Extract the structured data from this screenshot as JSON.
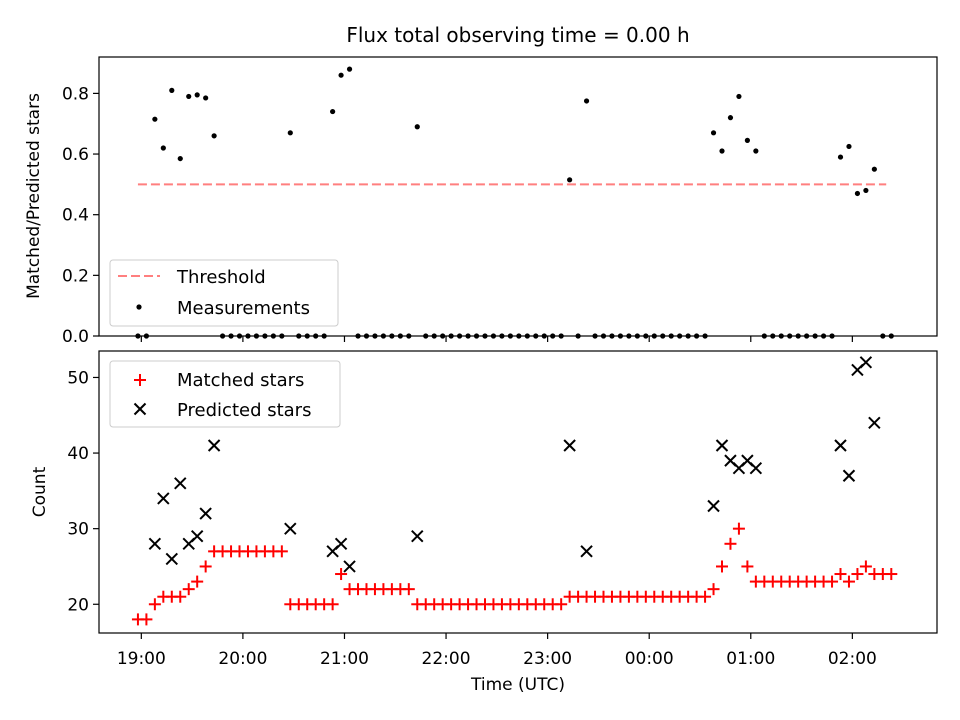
{
  "chart_data": [
    {
      "type": "scatter",
      "title": "Flux total observing time = 0.00 h",
      "ylabel": "Matched/Predicted stars",
      "xlim": [
        "18:35",
        "02:50"
      ],
      "ylim": [
        0,
        0.92
      ],
      "yticks": [
        "0.0",
        "0.2",
        "0.4",
        "0.6",
        "0.8"
      ],
      "legend_position": "lower-left",
      "threshold": {
        "name": "Threshold",
        "value": 0.5,
        "x_range": [
          "18:58",
          "02:20"
        ],
        "color": "#ff7f7f",
        "style": "dashed"
      },
      "series": [
        {
          "name": "Measurements",
          "color": "#000000",
          "marker": "dot",
          "points": [
            [
              "18:58",
              0
            ],
            [
              "19:03",
              0
            ],
            [
              "19:08",
              0.715
            ],
            [
              "19:13",
              0.62
            ],
            [
              "19:18",
              0.81
            ],
            [
              "19:23",
              0.585
            ],
            [
              "19:28",
              0.79
            ],
            [
              "19:33",
              0.795
            ],
            [
              "19:38",
              0.785
            ],
            [
              "19:43",
              0.66
            ],
            [
              "19:48",
              0
            ],
            [
              "19:53",
              0
            ],
            [
              "19:58",
              0
            ],
            [
              "20:03",
              0
            ],
            [
              "20:08",
              0
            ],
            [
              "20:13",
              0
            ],
            [
              "20:18",
              0
            ],
            [
              "20:23",
              0
            ],
            [
              "20:28",
              0.67
            ],
            [
              "20:33",
              0
            ],
            [
              "20:38",
              0
            ],
            [
              "20:43",
              0
            ],
            [
              "20:48",
              0
            ],
            [
              "20:53",
              0.74
            ],
            [
              "20:58",
              0.86
            ],
            [
              "21:03",
              0.88
            ],
            [
              "21:08",
              0
            ],
            [
              "21:13",
              0
            ],
            [
              "21:18",
              0
            ],
            [
              "21:23",
              0
            ],
            [
              "21:28",
              0
            ],
            [
              "21:33",
              0
            ],
            [
              "21:38",
              0
            ],
            [
              "21:43",
              0.69
            ],
            [
              "21:48",
              0
            ],
            [
              "21:53",
              0
            ],
            [
              "21:58",
              0
            ],
            [
              "22:03",
              0
            ],
            [
              "22:08",
              0
            ],
            [
              "22:13",
              0
            ],
            [
              "22:18",
              0
            ],
            [
              "22:23",
              0
            ],
            [
              "22:28",
              0
            ],
            [
              "22:33",
              0
            ],
            [
              "22:38",
              0
            ],
            [
              "22:43",
              0
            ],
            [
              "22:48",
              0
            ],
            [
              "22:53",
              0
            ],
            [
              "22:58",
              0
            ],
            [
              "23:03",
              0
            ],
            [
              "23:08",
              0
            ],
            [
              "23:13",
              0.515
            ],
            [
              "23:18",
              0
            ],
            [
              "23:23",
              0.775
            ],
            [
              "23:28",
              0
            ],
            [
              "23:33",
              0
            ],
            [
              "23:38",
              0
            ],
            [
              "23:43",
              0
            ],
            [
              "23:48",
              0
            ],
            [
              "23:53",
              0
            ],
            [
              "23:58",
              0
            ],
            [
              "00:03",
              0
            ],
            [
              "00:08",
              0
            ],
            [
              "00:13",
              0
            ],
            [
              "00:18",
              0
            ],
            [
              "00:23",
              0
            ],
            [
              "00:28",
              0
            ],
            [
              "00:33",
              0
            ],
            [
              "00:38",
              0.67
            ],
            [
              "00:43",
              0.61
            ],
            [
              "00:48",
              0.72
            ],
            [
              "00:53",
              0.79
            ],
            [
              "00:58",
              0.645
            ],
            [
              "01:03",
              0.61
            ],
            [
              "01:08",
              0
            ],
            [
              "01:13",
              0
            ],
            [
              "01:18",
              0
            ],
            [
              "01:23",
              0
            ],
            [
              "01:28",
              0
            ],
            [
              "01:33",
              0
            ],
            [
              "01:38",
              0
            ],
            [
              "01:43",
              0
            ],
            [
              "01:48",
              0
            ],
            [
              "01:53",
              0.59
            ],
            [
              "01:58",
              0.625
            ],
            [
              "02:03",
              0.47
            ],
            [
              "02:08",
              0.48
            ],
            [
              "02:13",
              0.55
            ],
            [
              "02:18",
              0
            ],
            [
              "02:23",
              0
            ]
          ]
        }
      ]
    },
    {
      "type": "scatter",
      "xlabel": "Time (UTC)",
      "ylabel": "Count",
      "xlim": [
        "18:35",
        "02:50"
      ],
      "ylim": [
        16.2,
        53.5
      ],
      "yticks": [
        "20",
        "30",
        "40",
        "50"
      ],
      "xticks": [
        "19:00",
        "20:00",
        "21:00",
        "22:00",
        "23:00",
        "00:00",
        "01:00",
        "02:00"
      ],
      "legend_position": "upper-left",
      "series": [
        {
          "name": "Matched stars",
          "color": "#ff0000",
          "marker": "plus",
          "points": [
            [
              "18:58",
              18
            ],
            [
              "19:03",
              18
            ],
            [
              "19:08",
              20
            ],
            [
              "19:13",
              21
            ],
            [
              "19:18",
              21
            ],
            [
              "19:23",
              21
            ],
            [
              "19:28",
              22
            ],
            [
              "19:33",
              23
            ],
            [
              "19:38",
              25
            ],
            [
              "19:43",
              27
            ],
            [
              "19:48",
              27
            ],
            [
              "19:53",
              27
            ],
            [
              "19:58",
              27
            ],
            [
              "20:03",
              27
            ],
            [
              "20:08",
              27
            ],
            [
              "20:13",
              27
            ],
            [
              "20:18",
              27
            ],
            [
              "20:23",
              27
            ],
            [
              "20:28",
              20
            ],
            [
              "20:33",
              20
            ],
            [
              "20:38",
              20
            ],
            [
              "20:43",
              20
            ],
            [
              "20:48",
              20
            ],
            [
              "20:53",
              20
            ],
            [
              "20:58",
              24
            ],
            [
              "21:03",
              22
            ],
            [
              "21:08",
              22
            ],
            [
              "21:13",
              22
            ],
            [
              "21:18",
              22
            ],
            [
              "21:23",
              22
            ],
            [
              "21:28",
              22
            ],
            [
              "21:33",
              22
            ],
            [
              "21:38",
              22
            ],
            [
              "21:43",
              20
            ],
            [
              "21:48",
              20
            ],
            [
              "21:53",
              20
            ],
            [
              "21:58",
              20
            ],
            [
              "22:03",
              20
            ],
            [
              "22:08",
              20
            ],
            [
              "22:13",
              20
            ],
            [
              "22:18",
              20
            ],
            [
              "22:23",
              20
            ],
            [
              "22:28",
              20
            ],
            [
              "22:33",
              20
            ],
            [
              "22:38",
              20
            ],
            [
              "22:43",
              20
            ],
            [
              "22:48",
              20
            ],
            [
              "22:53",
              20
            ],
            [
              "22:58",
              20
            ],
            [
              "23:03",
              20
            ],
            [
              "23:08",
              20
            ],
            [
              "23:13",
              21
            ],
            [
              "23:18",
              21
            ],
            [
              "23:23",
              21
            ],
            [
              "23:28",
              21
            ],
            [
              "23:33",
              21
            ],
            [
              "23:38",
              21
            ],
            [
              "23:43",
              21
            ],
            [
              "23:48",
              21
            ],
            [
              "23:53",
              21
            ],
            [
              "23:58",
              21
            ],
            [
              "00:03",
              21
            ],
            [
              "00:08",
              21
            ],
            [
              "00:13",
              21
            ],
            [
              "00:18",
              21
            ],
            [
              "00:23",
              21
            ],
            [
              "00:28",
              21
            ],
            [
              "00:33",
              21
            ],
            [
              "00:38",
              22
            ],
            [
              "00:43",
              25
            ],
            [
              "00:48",
              28
            ],
            [
              "00:53",
              30
            ],
            [
              "00:58",
              25
            ],
            [
              "01:03",
              23
            ],
            [
              "01:08",
              23
            ],
            [
              "01:13",
              23
            ],
            [
              "01:18",
              23
            ],
            [
              "01:23",
              23
            ],
            [
              "01:28",
              23
            ],
            [
              "01:33",
              23
            ],
            [
              "01:38",
              23
            ],
            [
              "01:43",
              23
            ],
            [
              "01:48",
              23
            ],
            [
              "01:53",
              24
            ],
            [
              "01:58",
              23
            ],
            [
              "02:03",
              24
            ],
            [
              "02:08",
              25
            ],
            [
              "02:13",
              24
            ],
            [
              "02:18",
              24
            ],
            [
              "02:23",
              24
            ]
          ]
        },
        {
          "name": "Predicted stars",
          "color": "#000000",
          "marker": "x",
          "points": [
            [
              "19:08",
              28
            ],
            [
              "19:13",
              34
            ],
            [
              "19:18",
              26
            ],
            [
              "19:23",
              36
            ],
            [
              "19:28",
              28
            ],
            [
              "19:33",
              29
            ],
            [
              "19:38",
              32
            ],
            [
              "19:43",
              41
            ],
            [
              "20:28",
              30
            ],
            [
              "20:53",
              27
            ],
            [
              "20:58",
              28
            ],
            [
              "21:03",
              25
            ],
            [
              "21:43",
              29
            ],
            [
              "23:13",
              41
            ],
            [
              "23:23",
              27
            ],
            [
              "00:38",
              33
            ],
            [
              "00:43",
              41
            ],
            [
              "00:48",
              39
            ],
            [
              "00:53",
              38
            ],
            [
              "00:58",
              39
            ],
            [
              "01:03",
              38
            ],
            [
              "01:53",
              41
            ],
            [
              "01:58",
              37
            ],
            [
              "02:03",
              51
            ],
            [
              "02:08",
              52
            ],
            [
              "02:13",
              44
            ]
          ]
        }
      ]
    }
  ]
}
